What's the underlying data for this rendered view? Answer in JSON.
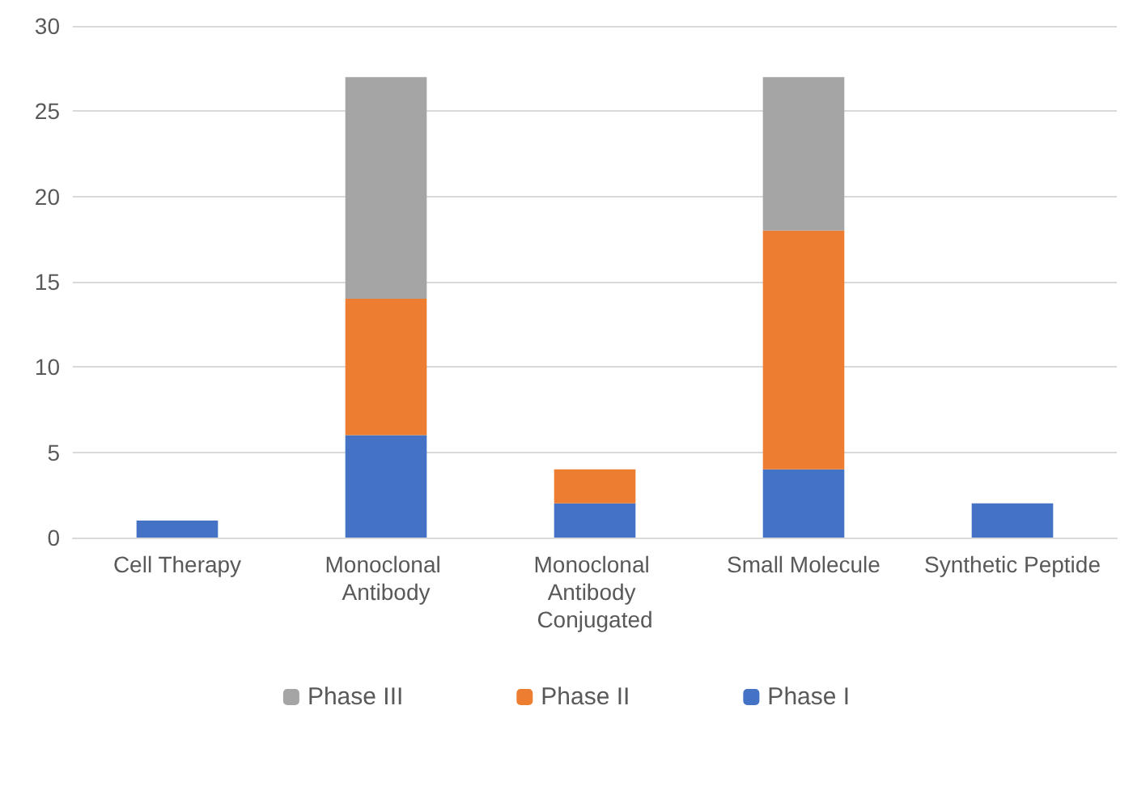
{
  "chart_data": {
    "type": "bar",
    "stacked": true,
    "categories": [
      "Cell Therapy",
      "Monoclonal Antibody",
      "Monoclonal Antibody Conjugated",
      "Small Molecule",
      "Synthetic Peptide"
    ],
    "series": [
      {
        "name": "Phase I",
        "color": "#4472c4",
        "values": [
          1,
          6,
          2,
          4,
          2
        ]
      },
      {
        "name": "Phase II",
        "color": "#ed7d31",
        "values": [
          null,
          8,
          2,
          14,
          null
        ]
      },
      {
        "name": "Phase III",
        "color": "#a5a5a5",
        "values": [
          null,
          13,
          null,
          9,
          null
        ]
      }
    ],
    "ylim": [
      0,
      30
    ],
    "yticks": [
      0,
      5,
      10,
      15,
      20,
      25,
      30
    ],
    "grid": "y",
    "legend": "bottom"
  }
}
